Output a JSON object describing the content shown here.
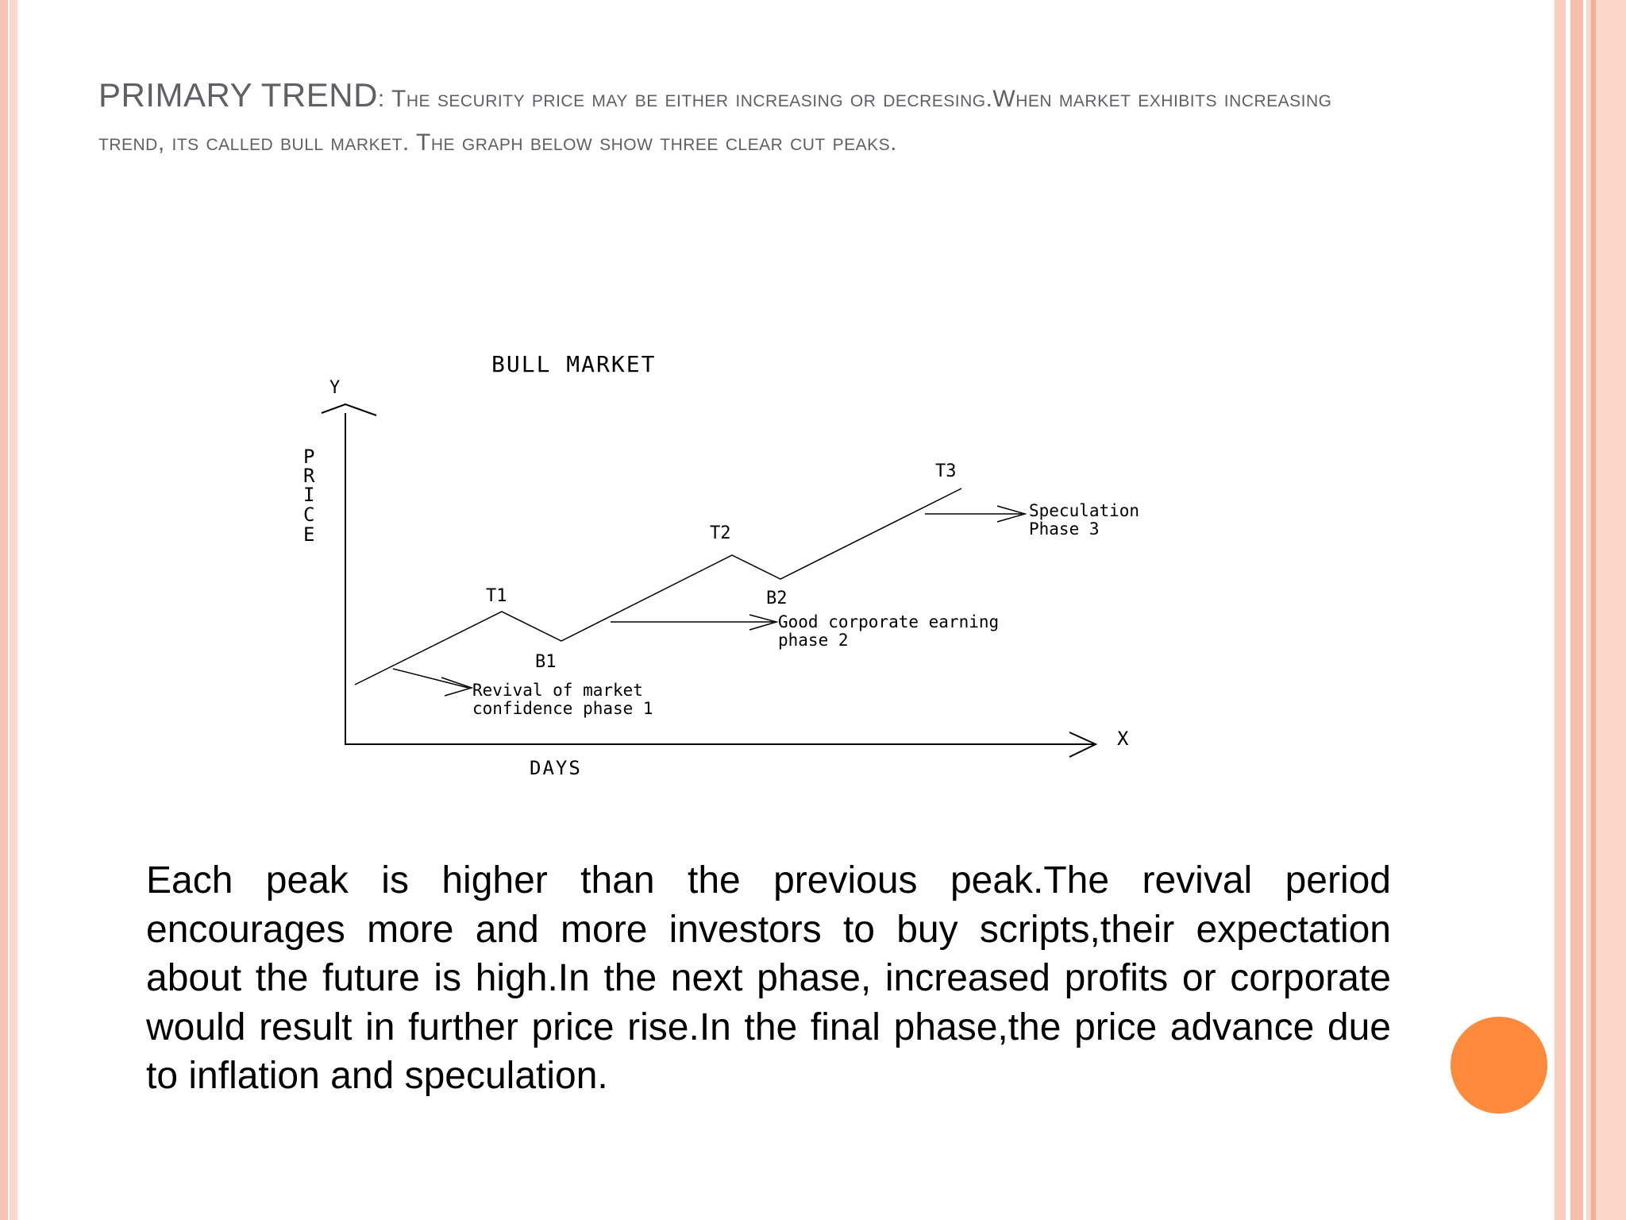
{
  "colors": {
    "title_text": "#5f5f66",
    "accent_dot": "#fe8a3d",
    "border_stripe": "#f7bfae"
  },
  "slide": {
    "title_lead": "PRIMARY TREND",
    "title_colon": ":",
    "title_rest": " The security price may be either increasing or decresing.When market exhibits increasing trend, its called bull market. The graph below show three clear cut peaks.",
    "body": "Each peak is higher than the previous peak.The revival period encourages more and more investors to buy scripts,their expectation about the future is high.In the next phase, increased profits or corporate would result in further price rise.In the final phase,the price advance due to inflation and speculation."
  },
  "diagram": {
    "title": "BULL MARKET",
    "y_axis_letter": "Y",
    "x_axis_letter": "X",
    "y_label_letters": [
      "P",
      "R",
      "I",
      "C",
      "E"
    ],
    "x_label": "DAYS",
    "points": {
      "t1": "T1",
      "b1": "B1",
      "t2": "T2",
      "b2": "B2",
      "t3": "T3"
    },
    "phase1": {
      "line1": "Revival of market",
      "line2": "confidence phase 1"
    },
    "phase2": {
      "line1": "Good corporate earning",
      "line2": "phase 2"
    },
    "phase3": {
      "line1": "Speculation",
      "line2": "Phase 3"
    }
  }
}
